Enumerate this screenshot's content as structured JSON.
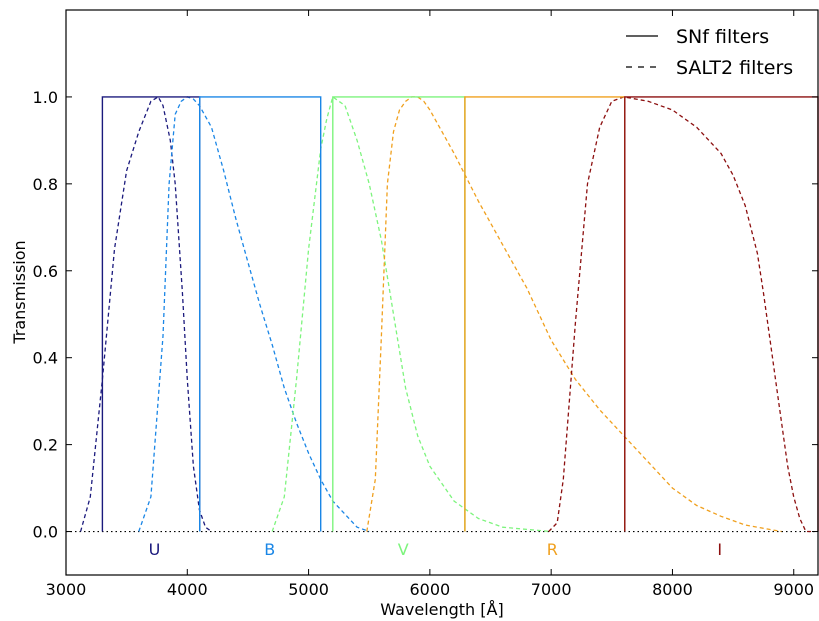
{
  "chart_data": {
    "type": "line",
    "xlabel": "Wavelength [Å]",
    "ylabel": "Transmission",
    "xlim": [
      3000,
      9200
    ],
    "ylim": [
      -0.1,
      1.2
    ],
    "xticks": [
      3000,
      4000,
      5000,
      6000,
      7000,
      8000,
      9000
    ],
    "xtick_labels": [
      "3000",
      "4000",
      "5000",
      "6000",
      "7000",
      "8000",
      "9000"
    ],
    "yticks": [
      0.0,
      0.2,
      0.4,
      0.6,
      0.8,
      1.0
    ],
    "ytick_labels": [
      "0.0",
      "0.2",
      "0.4",
      "0.6",
      "0.8",
      "1.0"
    ],
    "grid": false,
    "legend": {
      "placement": "top-right",
      "entries": [
        {
          "label": "SNf filters",
          "style": "solid"
        },
        {
          "label": "SALT2 filters",
          "style": "dashed"
        }
      ]
    },
    "zero_line": {
      "y": 0,
      "style": "dotted",
      "color": "#000000"
    },
    "snf_filters": [
      {
        "name": "U",
        "lo": 3300,
        "hi": 4102,
        "color": "#1b1a7d"
      },
      {
        "name": "B",
        "lo": 4102,
        "hi": 5100,
        "color": "#1a86e6"
      },
      {
        "name": "V",
        "lo": 5200,
        "hi": 6289,
        "color": "#7df47d"
      },
      {
        "name": "R",
        "lo": 6289,
        "hi": 7607,
        "color": "#f0a01e"
      },
      {
        "name": "I",
        "lo": 7607,
        "hi": 9200,
        "color": "#8c0f0f"
      }
    ],
    "salt2_filters": [
      {
        "name": "U",
        "color": "#1b1a7d",
        "x": [
          3120,
          3200,
          3300,
          3400,
          3500,
          3600,
          3700,
          3760,
          3800,
          3860,
          3900,
          3960,
          4000,
          4050,
          4100,
          4150,
          4200
        ],
        "y": [
          0.0,
          0.08,
          0.35,
          0.65,
          0.83,
          0.92,
          0.99,
          1.0,
          0.98,
          0.9,
          0.8,
          0.55,
          0.35,
          0.15,
          0.05,
          0.01,
          0.0
        ]
      },
      {
        "name": "B",
        "color": "#1a86e6",
        "x": [
          3600,
          3700,
          3800,
          3850,
          3900,
          3950,
          4000,
          4050,
          4100,
          4200,
          4300,
          4400,
          4500,
          4600,
          4700,
          4800,
          4900,
          5000,
          5100,
          5200,
          5300,
          5400,
          5500
        ],
        "y": [
          0.0,
          0.08,
          0.45,
          0.8,
          0.96,
          0.99,
          1.0,
          0.995,
          0.98,
          0.93,
          0.83,
          0.72,
          0.62,
          0.52,
          0.43,
          0.33,
          0.25,
          0.18,
          0.12,
          0.07,
          0.04,
          0.01,
          0.0
        ]
      },
      {
        "name": "V",
        "color": "#7df47d",
        "x": [
          4700,
          4800,
          4900,
          5000,
          5100,
          5150,
          5200,
          5300,
          5400,
          5500,
          5600,
          5700,
          5800,
          5900,
          6000,
          6200,
          6400,
          6600,
          6800,
          7000
        ],
        "y": [
          0.0,
          0.08,
          0.35,
          0.65,
          0.88,
          0.95,
          1.0,
          0.98,
          0.9,
          0.8,
          0.67,
          0.5,
          0.33,
          0.22,
          0.15,
          0.07,
          0.03,
          0.01,
          0.005,
          0.0
        ]
      },
      {
        "name": "R",
        "color": "#f0a01e",
        "x": [
          5480,
          5550,
          5600,
          5650,
          5700,
          5750,
          5800,
          5850,
          5900,
          5950,
          6000,
          6100,
          6200,
          6400,
          6600,
          6800,
          7000,
          7200,
          7400,
          7600,
          7800,
          8000,
          8200,
          8400,
          8600,
          8800,
          8900
        ],
        "y": [
          0.0,
          0.12,
          0.45,
          0.8,
          0.92,
          0.97,
          0.99,
          1.0,
          1.0,
          0.99,
          0.97,
          0.92,
          0.87,
          0.76,
          0.66,
          0.56,
          0.44,
          0.35,
          0.28,
          0.22,
          0.16,
          0.1,
          0.06,
          0.035,
          0.015,
          0.005,
          0.0
        ]
      },
      {
        "name": "I",
        "color": "#8c0f0f",
        "x": [
          6980,
          7050,
          7100,
          7200,
          7300,
          7400,
          7500,
          7600,
          7700,
          7800,
          8000,
          8200,
          8400,
          8500,
          8600,
          8700,
          8750,
          8800,
          8850,
          8900,
          8950,
          9000,
          9050,
          9100,
          9150
        ],
        "y": [
          0.0,
          0.02,
          0.12,
          0.48,
          0.8,
          0.93,
          0.99,
          1.0,
          0.995,
          0.99,
          0.97,
          0.93,
          0.87,
          0.82,
          0.75,
          0.64,
          0.55,
          0.45,
          0.35,
          0.25,
          0.15,
          0.08,
          0.03,
          0.0,
          0.0
        ]
      }
    ],
    "band_labels": [
      {
        "text": "U",
        "x": 3730,
        "y": -0.04,
        "color": "#1b1a7d"
      },
      {
        "text": "B",
        "x": 4680,
        "y": -0.04,
        "color": "#1a86e6"
      },
      {
        "text": "V",
        "x": 5780,
        "y": -0.04,
        "color": "#7df47d"
      },
      {
        "text": "R",
        "x": 7010,
        "y": -0.04,
        "color": "#f0a01e"
      },
      {
        "text": "I",
        "x": 8390,
        "y": -0.04,
        "color": "#8c0f0f"
      }
    ]
  }
}
